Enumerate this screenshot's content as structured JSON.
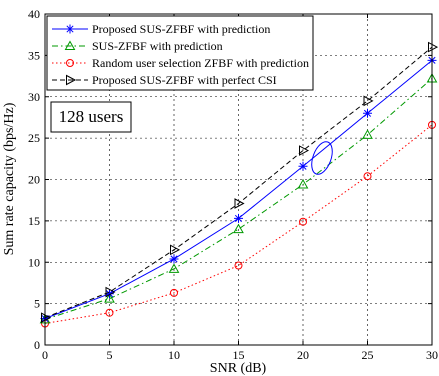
{
  "chart_data": {
    "type": "line",
    "xlabel": "SNR (dB)",
    "ylabel": "Sum rate capacity (bps/Hz)",
    "xlim": [
      0,
      30
    ],
    "ylim": [
      0,
      40
    ],
    "x_ticks": [
      0,
      5,
      10,
      15,
      20,
      25,
      30
    ],
    "y_ticks": [
      0,
      5,
      10,
      15,
      20,
      25,
      30,
      35,
      40
    ],
    "grid": true,
    "legend_position": "top-left",
    "annotation": "128 users",
    "series": [
      {
        "name": "Proposed SUS-ZFBF with prediction",
        "color": "#0000ff",
        "line_style": "solid",
        "marker": "asterisk",
        "x": [
          0,
          5,
          10,
          15,
          20,
          25,
          30
        ],
        "y": [
          3.2,
          6.2,
          10.4,
          15.3,
          21.6,
          28.0,
          34.4
        ]
      },
      {
        "name": "SUS-ZFBF with prediction",
        "color": "#009900",
        "line_style": "dashdot",
        "marker": "triangle-up",
        "x": [
          0,
          5,
          10,
          15,
          20,
          25,
          30
        ],
        "y": [
          3.1,
          5.6,
          9.2,
          14.0,
          19.4,
          25.4,
          32.2
        ]
      },
      {
        "name": "Random user selection ZFBF with prediction",
        "color": "#ff0000",
        "line_style": "dotted",
        "marker": "circle",
        "x": [
          0,
          5,
          10,
          15,
          20,
          25,
          30
        ],
        "y": [
          2.6,
          3.9,
          6.3,
          9.6,
          14.9,
          20.4,
          26.6
        ]
      },
      {
        "name": "Proposed SUS-ZFBF with perfect CSI",
        "color": "#000000",
        "line_style": "dashed",
        "marker": "triangle-right",
        "x": [
          0,
          5,
          10,
          15,
          20,
          25,
          30
        ],
        "y": [
          3.3,
          6.4,
          11.5,
          17.1,
          23.5,
          29.5,
          36.0
        ]
      }
    ]
  }
}
